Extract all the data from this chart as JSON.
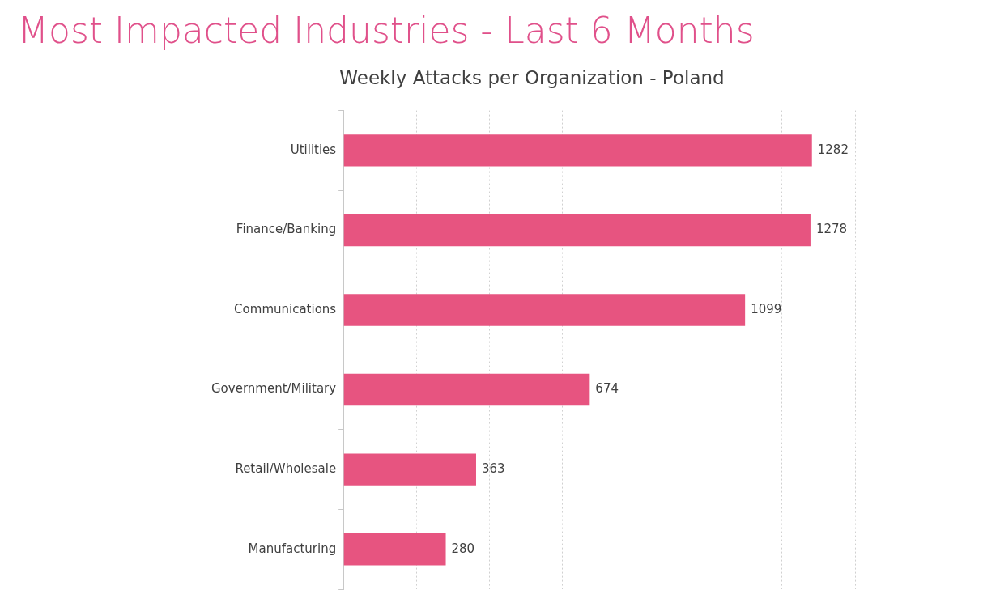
{
  "chart_data": {
    "type": "bar",
    "orientation": "horizontal",
    "title": "Most Impacted Industries - Last 6 Months",
    "subtitle": "Weekly Attacks per Organization - Poland",
    "categories": [
      "Utilities",
      "Finance/Banking",
      "Communications",
      "Government/Military",
      "Retail/Wholesale",
      "Manufacturing"
    ],
    "values": [
      1282,
      1278,
      1099,
      674,
      363,
      280
    ],
    "color": "#e75480",
    "xlim": [
      0,
      1400
    ],
    "xticks": [
      {
        "value": 0,
        "label": null
      },
      {
        "value": 200,
        "label": null
      },
      {
        "value": 400,
        "label": null
      },
      {
        "value": 600,
        "label": null
      },
      {
        "value": 800,
        "label": null
      },
      {
        "value": 1000,
        "label": null
      },
      {
        "value": 1200,
        "label": null
      },
      {
        "value": 1400,
        "label": null
      }
    ],
    "tick_labels": "y",
    "grid": "x",
    "data_labels": true,
    "legend": false
  }
}
